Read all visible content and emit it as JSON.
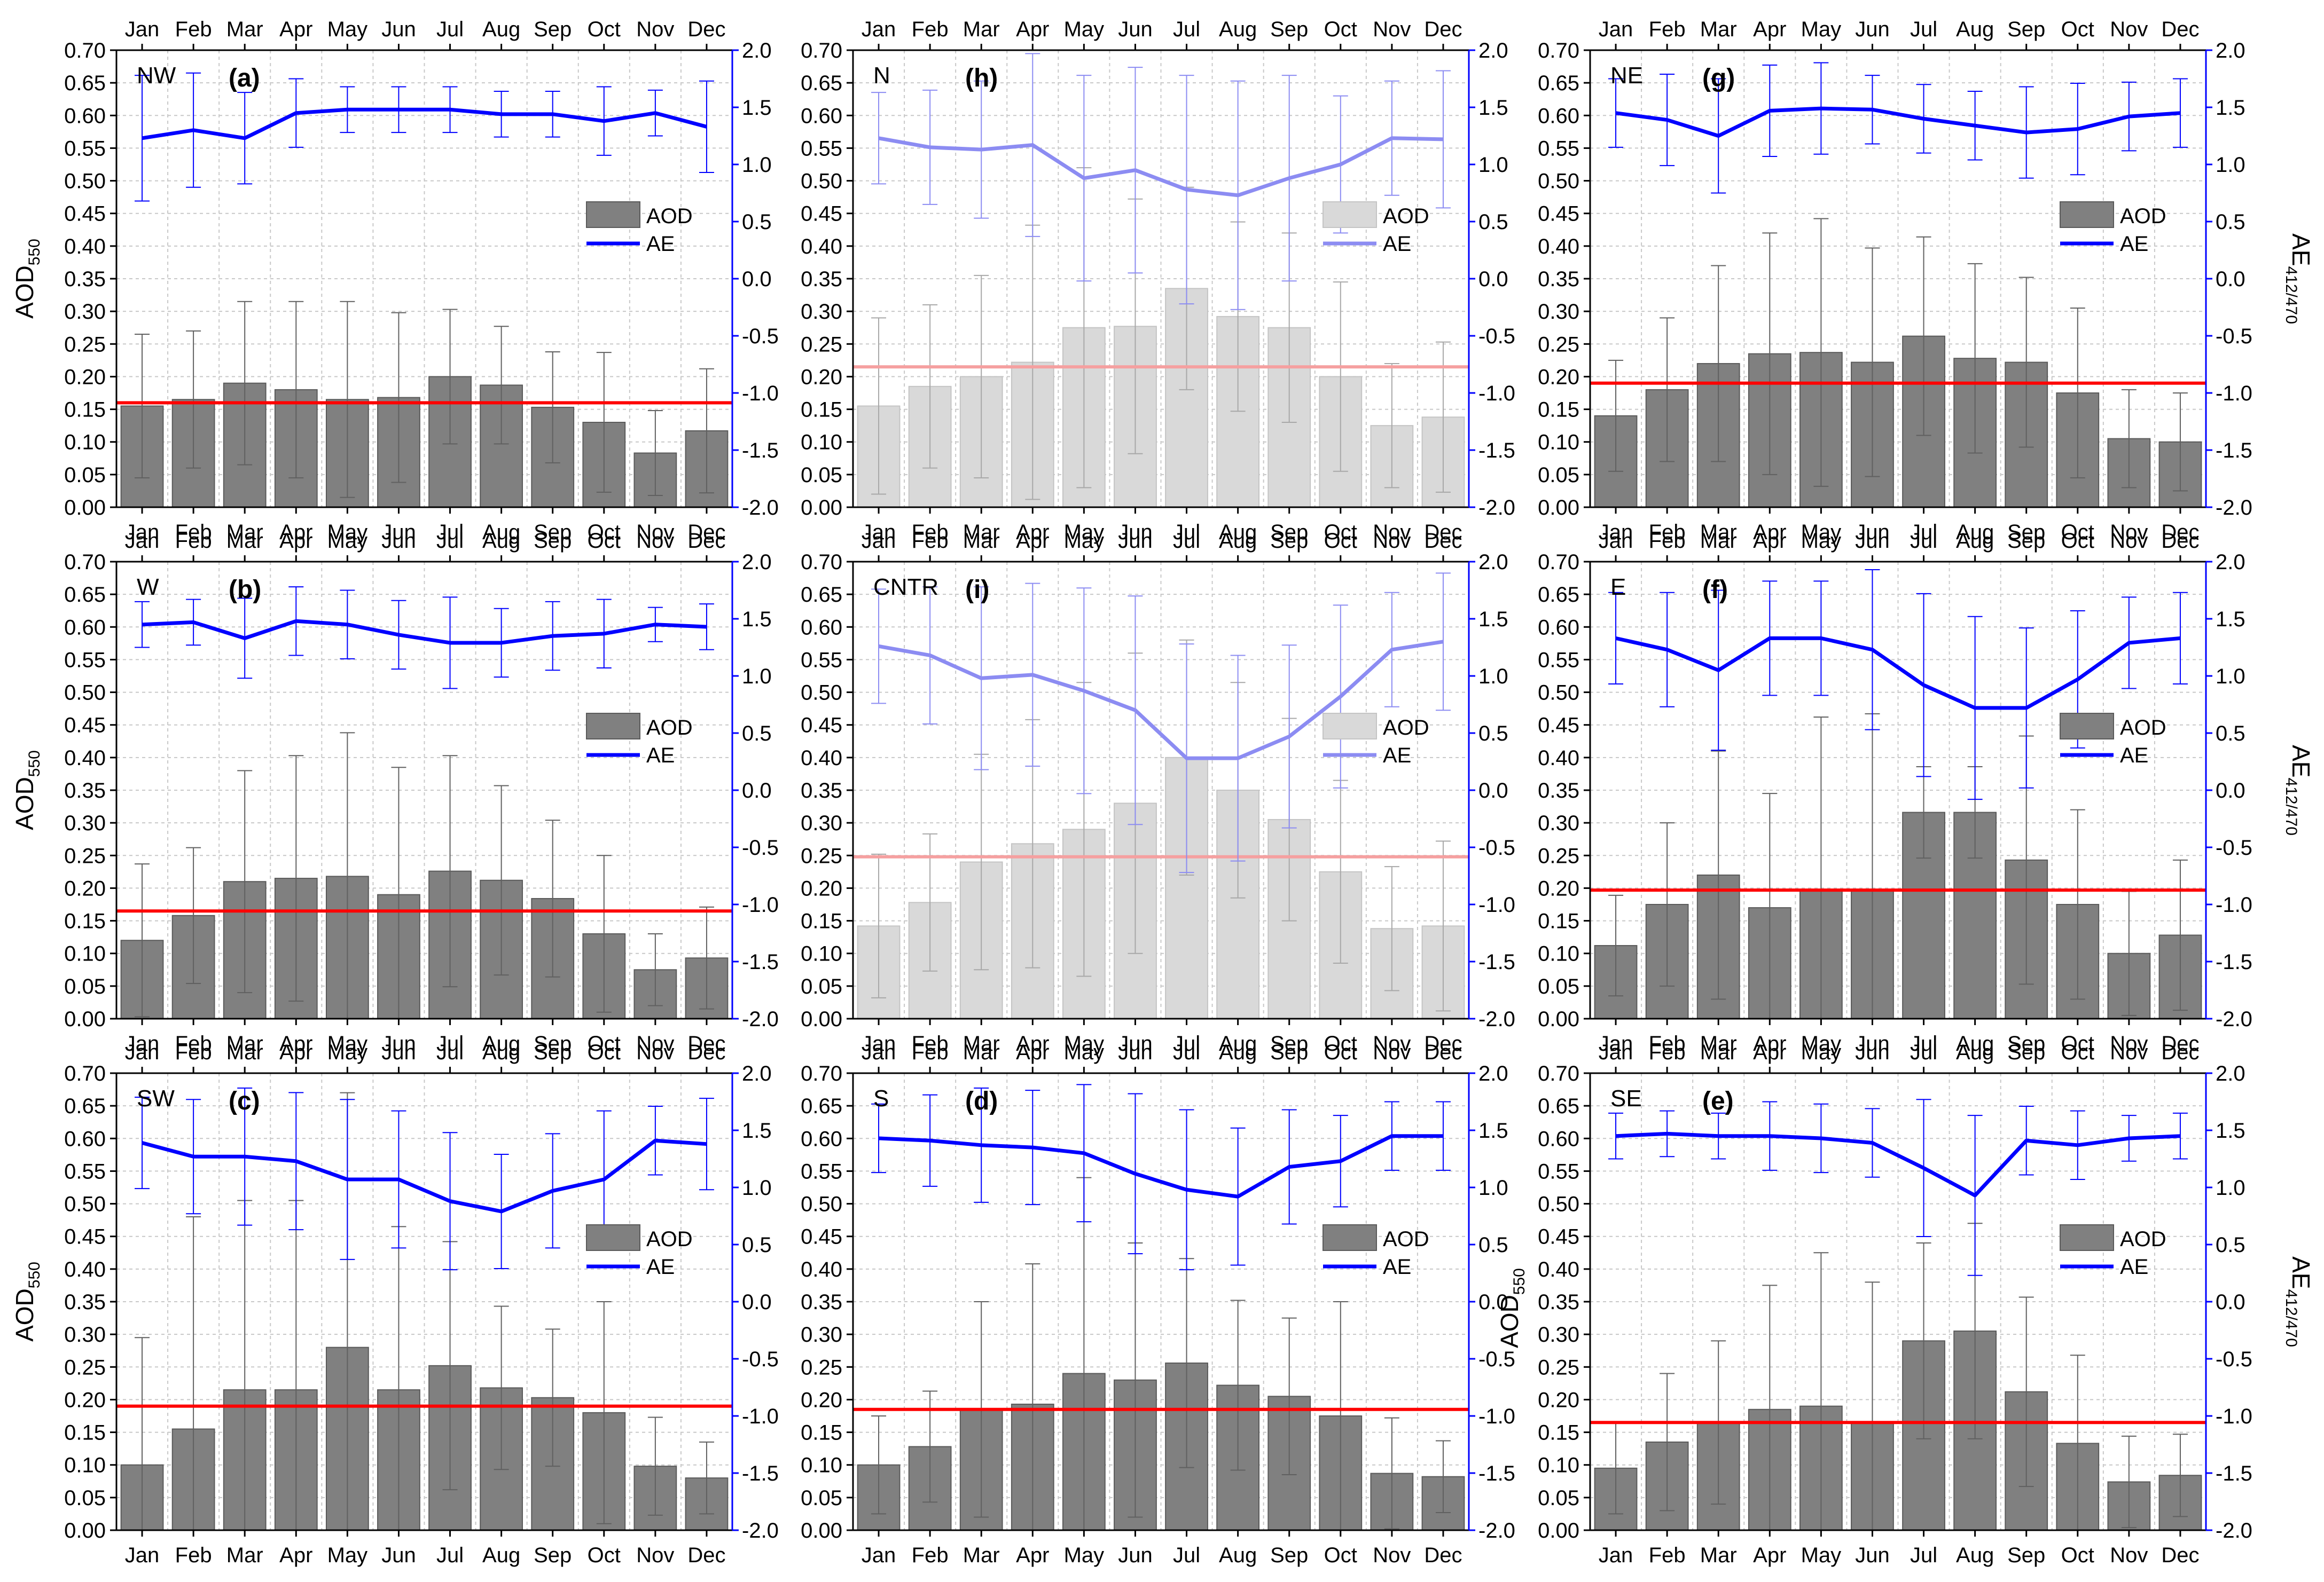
{
  "figure": {
    "months": [
      "Jan",
      "Feb",
      "Mar",
      "Apr",
      "May",
      "Jun",
      "Jul",
      "Aug",
      "Sep",
      "Oct",
      "Nov",
      "Dec"
    ],
    "left_axis": {
      "min": 0.0,
      "max": 0.7,
      "step": 0.05
    },
    "right_axis": {
      "min": -2.0,
      "max": 2.0,
      "step": 0.5
    },
    "legend": {
      "aod": "AOD",
      "ae": "AE"
    },
    "left_axis_title": {
      "main": "AOD",
      "sub": "550"
    },
    "right_axis_title": {
      "main": "AE",
      "sub": "412/470"
    },
    "colors": {
      "bar": "#808080",
      "bar_faded": "#d9d9d9",
      "ae": "#0000ff",
      "ae_faded": "#8c8cf2",
      "mean_line": "#ff0000",
      "mean_line_faded": "#f5a0a0",
      "errorbar_aod": "#606060",
      "errorbar_ae": "#0000ff",
      "grid": "#c8c8c8"
    }
  },
  "chart_data": [
    {
      "type": "bar",
      "region": "NW",
      "panel": "(a)",
      "faded": false,
      "categories": [
        "Jan",
        "Feb",
        "Mar",
        "Apr",
        "May",
        "Jun",
        "Jul",
        "Aug",
        "Sep",
        "Oct",
        "Nov",
        "Dec"
      ],
      "series": [
        {
          "name": "AOD",
          "axis": "left",
          "values": [
            0.155,
            0.165,
            0.19,
            0.18,
            0.165,
            0.168,
            0.2,
            0.187,
            0.153,
            0.13,
            0.083,
            0.117
          ],
          "error": [
            0.11,
            0.105,
            0.125,
            0.135,
            0.15,
            0.13,
            0.103,
            0.09,
            0.085,
            0.107,
            0.065,
            0.095
          ]
        },
        {
          "name": "AE",
          "axis": "right",
          "values": [
            1.23,
            1.3,
            1.23,
            1.45,
            1.48,
            1.48,
            1.48,
            1.44,
            1.44,
            1.38,
            1.45,
            1.33
          ],
          "error": [
            0.55,
            0.5,
            0.4,
            0.3,
            0.2,
            0.2,
            0.2,
            0.2,
            0.2,
            0.3,
            0.2,
            0.4
          ]
        }
      ],
      "mean_aod": 0.16,
      "ylim": [
        0,
        0.7
      ],
      "y2lim": [
        -2,
        2
      ]
    },
    {
      "type": "bar",
      "region": "N",
      "panel": "(h)",
      "faded": true,
      "categories": [
        "Jan",
        "Feb",
        "Mar",
        "Apr",
        "May",
        "Jun",
        "Jul",
        "Aug",
        "Sep",
        "Oct",
        "Nov",
        "Dec"
      ],
      "series": [
        {
          "name": "AOD",
          "axis": "left",
          "values": [
            0.155,
            0.185,
            0.2,
            0.222,
            0.275,
            0.277,
            0.335,
            0.292,
            0.275,
            0.2,
            0.125,
            0.138
          ],
          "error": [
            0.135,
            0.125,
            0.155,
            0.21,
            0.245,
            0.195,
            0.155,
            0.145,
            0.145,
            0.145,
            0.095,
            0.115
          ]
        },
        {
          "name": "AE",
          "axis": "right",
          "values": [
            1.23,
            1.15,
            1.13,
            1.17,
            0.88,
            0.95,
            0.78,
            0.73,
            0.88,
            1.0,
            1.23,
            1.22
          ],
          "error": [
            0.4,
            0.5,
            0.6,
            0.8,
            0.9,
            0.9,
            1.0,
            1.0,
            0.9,
            0.6,
            0.5,
            0.6
          ]
        }
      ],
      "mean_aod": 0.215,
      "ylim": [
        0,
        0.7
      ],
      "y2lim": [
        -2,
        2
      ]
    },
    {
      "type": "bar",
      "region": "NE",
      "panel": "(g)",
      "faded": false,
      "categories": [
        "Jan",
        "Feb",
        "Mar",
        "Apr",
        "May",
        "Jun",
        "Jul",
        "Aug",
        "Sep",
        "Oct",
        "Nov",
        "Dec"
      ],
      "series": [
        {
          "name": "AOD",
          "axis": "left",
          "values": [
            0.14,
            0.18,
            0.22,
            0.235,
            0.237,
            0.222,
            0.262,
            0.228,
            0.222,
            0.175,
            0.105,
            0.1
          ],
          "error": [
            0.085,
            0.11,
            0.15,
            0.185,
            0.205,
            0.175,
            0.152,
            0.145,
            0.13,
            0.13,
            0.075,
            0.075
          ]
        },
        {
          "name": "AE",
          "axis": "right",
          "values": [
            1.45,
            1.39,
            1.25,
            1.47,
            1.49,
            1.48,
            1.4,
            1.34,
            1.28,
            1.31,
            1.42,
            1.45
          ],
          "error": [
            0.3,
            0.4,
            0.5,
            0.4,
            0.4,
            0.3,
            0.3,
            0.3,
            0.4,
            0.4,
            0.3,
            0.3
          ]
        }
      ],
      "mean_aod": 0.19,
      "ylim": [
        0,
        0.7
      ],
      "y2lim": [
        -2,
        2
      ]
    },
    {
      "type": "bar",
      "region": "W",
      "panel": "(b)",
      "faded": false,
      "categories": [
        "Jan",
        "Feb",
        "Mar",
        "Apr",
        "May",
        "Jun",
        "Jul",
        "Aug",
        "Sep",
        "Oct",
        "Nov",
        "Dec"
      ],
      "series": [
        {
          "name": "AOD",
          "axis": "left",
          "values": [
            0.12,
            0.158,
            0.21,
            0.215,
            0.218,
            0.19,
            0.226,
            0.212,
            0.184,
            0.13,
            0.075,
            0.093
          ],
          "error": [
            0.117,
            0.104,
            0.17,
            0.188,
            0.22,
            0.195,
            0.177,
            0.145,
            0.12,
            0.12,
            0.055,
            0.078
          ]
        },
        {
          "name": "AE",
          "axis": "right",
          "values": [
            1.45,
            1.47,
            1.33,
            1.48,
            1.45,
            1.36,
            1.29,
            1.29,
            1.35,
            1.37,
            1.45,
            1.43
          ],
          "error": [
            0.2,
            0.2,
            0.35,
            0.3,
            0.3,
            0.3,
            0.4,
            0.3,
            0.3,
            0.3,
            0.15,
            0.2
          ]
        }
      ],
      "mean_aod": 0.165,
      "ylim": [
        0,
        0.7
      ],
      "y2lim": [
        -2,
        2
      ]
    },
    {
      "type": "bar",
      "region": "CNTR",
      "panel": "(i)",
      "faded": true,
      "categories": [
        "Jan",
        "Feb",
        "Mar",
        "Apr",
        "May",
        "Jun",
        "Jul",
        "Aug",
        "Sep",
        "Oct",
        "Nov",
        "Dec"
      ],
      "series": [
        {
          "name": "AOD",
          "axis": "left",
          "values": [
            0.142,
            0.178,
            0.24,
            0.268,
            0.29,
            0.33,
            0.4,
            0.35,
            0.305,
            0.225,
            0.138,
            0.142
          ],
          "error": [
            0.11,
            0.105,
            0.165,
            0.19,
            0.225,
            0.23,
            0.18,
            0.165,
            0.155,
            0.14,
            0.095,
            0.13
          ]
        },
        {
          "name": "AE",
          "axis": "right",
          "values": [
            1.26,
            1.18,
            0.98,
            1.01,
            0.87,
            0.7,
            0.28,
            0.28,
            0.47,
            0.82,
            1.23,
            1.3
          ],
          "error": [
            0.5,
            0.6,
            0.8,
            0.8,
            0.9,
            1.0,
            1.0,
            0.9,
            0.8,
            0.8,
            0.5,
            0.6
          ]
        }
      ],
      "mean_aod": 0.248,
      "ylim": [
        0,
        0.7
      ],
      "y2lim": [
        -2,
        2
      ]
    },
    {
      "type": "bar",
      "region": "E",
      "panel": "(f)",
      "faded": false,
      "categories": [
        "Jan",
        "Feb",
        "Mar",
        "Apr",
        "May",
        "Jun",
        "Jul",
        "Aug",
        "Sep",
        "Oct",
        "Nov",
        "Dec"
      ],
      "series": [
        {
          "name": "AOD",
          "axis": "left",
          "values": [
            0.112,
            0.175,
            0.22,
            0.17,
            0.197,
            0.197,
            0.316,
            0.316,
            0.243,
            0.175,
            0.1,
            0.128
          ],
          "error": [
            0.077,
            0.125,
            0.19,
            0.175,
            0.265,
            0.27,
            0.07,
            0.07,
            0.19,
            0.145,
            0.095,
            0.115
          ]
        },
        {
          "name": "AE",
          "axis": "right",
          "values": [
            1.33,
            1.23,
            1.05,
            1.33,
            1.33,
            1.23,
            0.92,
            0.72,
            0.72,
            0.97,
            1.29,
            1.33
          ],
          "error": [
            0.4,
            0.5,
            0.7,
            0.5,
            0.5,
            0.7,
            0.8,
            0.8,
            0.7,
            0.6,
            0.4,
            0.4
          ]
        }
      ],
      "mean_aod": 0.197,
      "ylim": [
        0,
        0.7
      ],
      "y2lim": [
        -2,
        2
      ]
    },
    {
      "type": "bar",
      "region": "SW",
      "panel": "(c)",
      "faded": false,
      "categories": [
        "Jan",
        "Feb",
        "Mar",
        "Apr",
        "May",
        "Jun",
        "Jul",
        "Aug",
        "Sep",
        "Oct",
        "Nov",
        "Dec"
      ],
      "series": [
        {
          "name": "AOD",
          "axis": "left",
          "values": [
            0.1,
            0.155,
            0.215,
            0.215,
            0.28,
            0.215,
            0.252,
            0.218,
            0.203,
            0.18,
            0.098,
            0.08
          ],
          "error": [
            0.195,
            0.325,
            0.29,
            0.29,
            0.39,
            0.25,
            0.19,
            0.125,
            0.105,
            0.17,
            0.075,
            0.055
          ]
        },
        {
          "name": "AE",
          "axis": "right",
          "values": [
            1.39,
            1.27,
            1.27,
            1.23,
            1.07,
            1.07,
            0.88,
            0.79,
            0.97,
            1.07,
            1.41,
            1.38
          ],
          "error": [
            0.4,
            0.5,
            0.6,
            0.6,
            0.7,
            0.6,
            0.6,
            0.5,
            0.5,
            0.6,
            0.3,
            0.4
          ]
        }
      ],
      "mean_aod": 0.19,
      "ylim": [
        0,
        0.7
      ],
      "y2lim": [
        -2,
        2
      ]
    },
    {
      "type": "bar",
      "region": "S",
      "panel": "(d)",
      "faded": false,
      "categories": [
        "Jan",
        "Feb",
        "Mar",
        "Apr",
        "May",
        "Jun",
        "Jul",
        "Aug",
        "Sep",
        "Oct",
        "Nov",
        "Dec"
      ],
      "series": [
        {
          "name": "AOD",
          "axis": "left",
          "values": [
            0.1,
            0.128,
            0.185,
            0.193,
            0.24,
            0.23,
            0.256,
            0.222,
            0.205,
            0.175,
            0.087,
            0.082
          ],
          "error": [
            0.075,
            0.085,
            0.165,
            0.215,
            0.3,
            0.21,
            0.16,
            0.13,
            0.12,
            0.175,
            0.085,
            0.055
          ]
        },
        {
          "name": "AE",
          "axis": "right",
          "values": [
            1.43,
            1.41,
            1.37,
            1.35,
            1.3,
            1.12,
            0.98,
            0.92,
            1.18,
            1.23,
            1.45,
            1.45
          ],
          "error": [
            0.3,
            0.4,
            0.5,
            0.5,
            0.6,
            0.7,
            0.7,
            0.6,
            0.5,
            0.4,
            0.3,
            0.3
          ]
        }
      ],
      "mean_aod": 0.185,
      "ylim": [
        0,
        0.7
      ],
      "y2lim": [
        -2,
        2
      ]
    },
    {
      "type": "bar",
      "region": "SE",
      "panel": "(e)",
      "faded": false,
      "categories": [
        "Jan",
        "Feb",
        "Mar",
        "Apr",
        "May",
        "Jun",
        "Jul",
        "Aug",
        "Sep",
        "Oct",
        "Nov",
        "Dec"
      ],
      "series": [
        {
          "name": "AOD",
          "axis": "left",
          "values": [
            0.095,
            0.135,
            0.165,
            0.185,
            0.19,
            0.165,
            0.29,
            0.305,
            0.212,
            0.133,
            0.074,
            0.084
          ],
          "error": [
            0.07,
            0.105,
            0.125,
            0.19,
            0.235,
            0.215,
            0.15,
            0.165,
            0.145,
            0.135,
            0.07,
            0.063
          ]
        },
        {
          "name": "AE",
          "axis": "right",
          "values": [
            1.45,
            1.47,
            1.45,
            1.45,
            1.43,
            1.39,
            1.17,
            0.93,
            1.41,
            1.37,
            1.43,
            1.45
          ],
          "error": [
            0.2,
            0.2,
            0.2,
            0.3,
            0.3,
            0.3,
            0.6,
            0.7,
            0.3,
            0.3,
            0.2,
            0.2
          ]
        }
      ],
      "mean_aod": 0.165,
      "ylim": [
        0,
        0.7
      ],
      "y2lim": [
        -2,
        2
      ]
    }
  ]
}
